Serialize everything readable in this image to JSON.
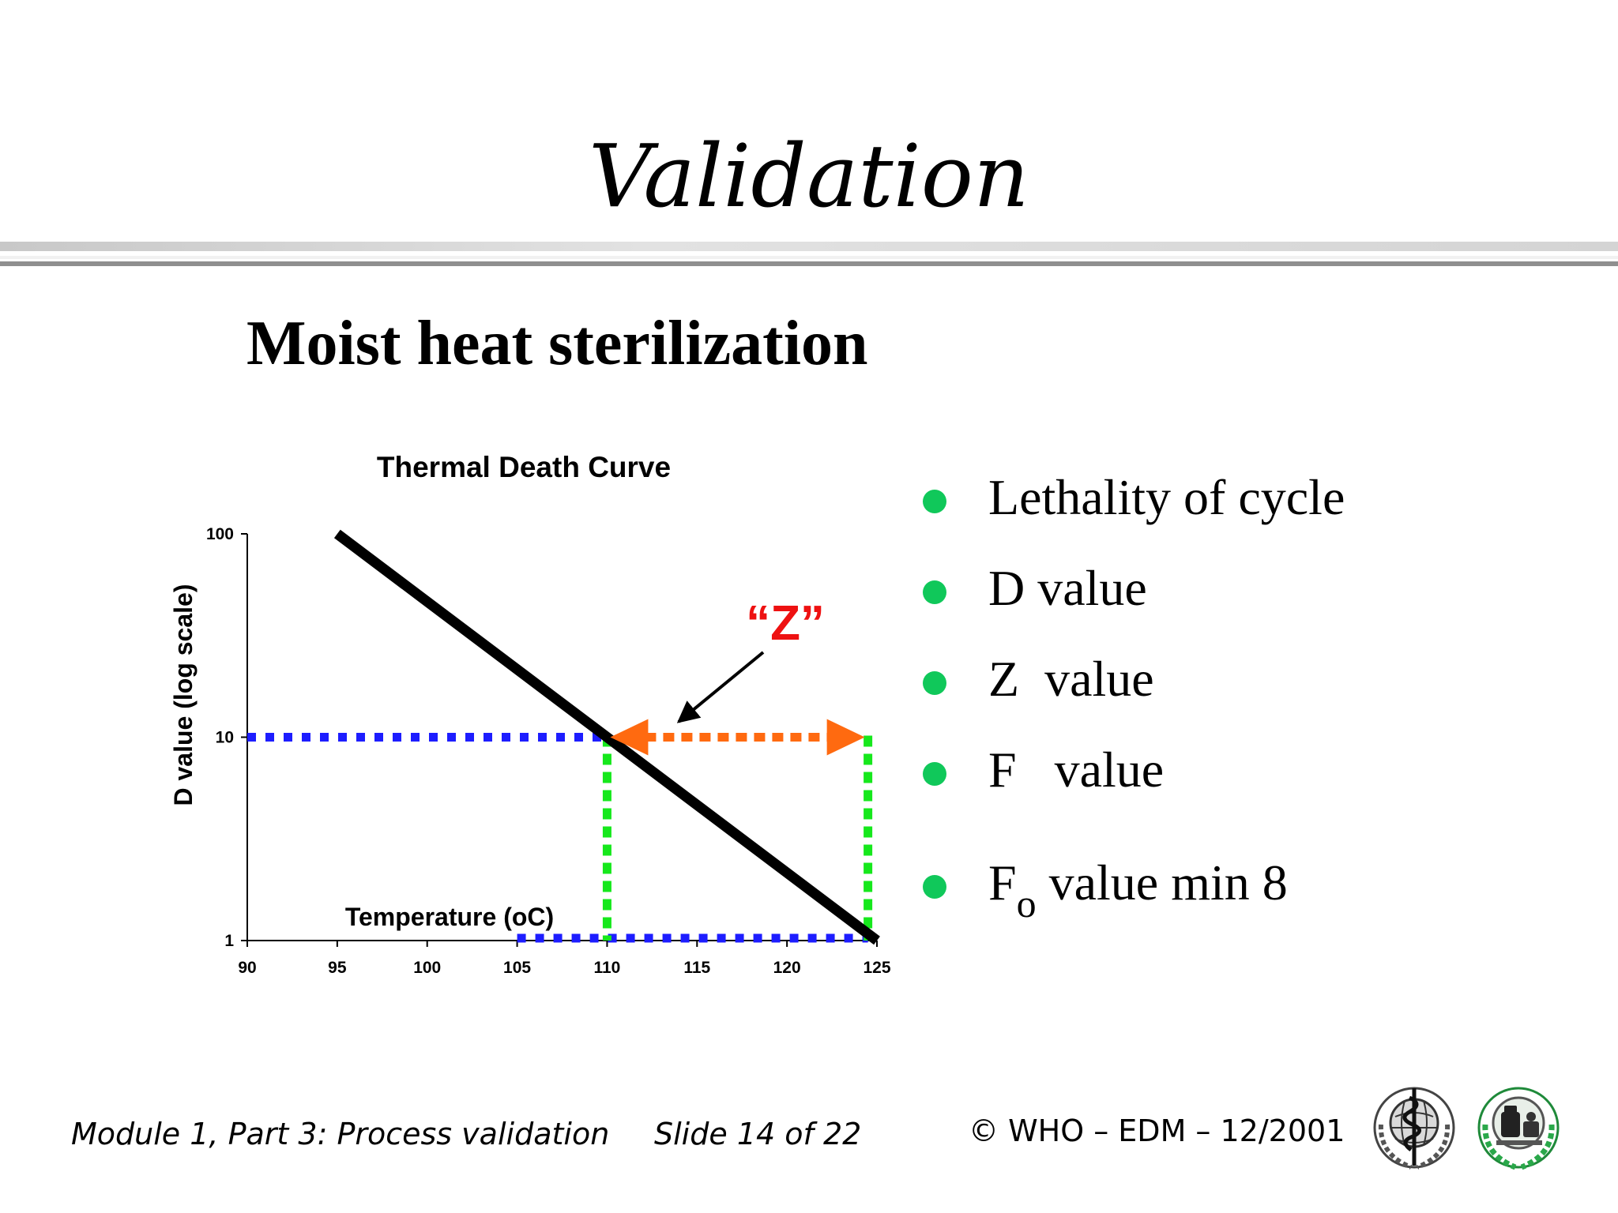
{
  "slide": {
    "title": "Validation",
    "subtitle": "Moist heat sterilization"
  },
  "chart_data": {
    "type": "line",
    "title": "Thermal Death Curve",
    "xlabel": "Temperature (oC)",
    "ylabel": "D value (log scale)",
    "x_ticks": [
      "90",
      "95",
      "100",
      "105",
      "110",
      "115",
      "120",
      "125"
    ],
    "y_ticks": [
      "1",
      "10",
      "100"
    ],
    "xlim": [
      90,
      125
    ],
    "ylim": [
      1,
      100
    ],
    "y_scale": "log",
    "grid": false,
    "series": [
      {
        "x": [
          95,
          125
        ],
        "y": [
          100,
          1
        ],
        "color": "#000000"
      }
    ],
    "reference_lines": {
      "d10_horizontal": {
        "x": [
          90,
          110
        ],
        "y": 10,
        "color": "#1d1dff"
      },
      "d1_horizontal": {
        "x": [
          105,
          124.5
        ],
        "y": 1,
        "color": "#1d1dff"
      },
      "vertical_110": {
        "x": 110,
        "y": [
          1,
          10
        ],
        "color": "#16e81c"
      },
      "vertical_124": {
        "x": 124.5,
        "y": [
          1,
          10
        ],
        "color": "#16e81c"
      },
      "z_span": {
        "x": [
          110,
          124.5
        ],
        "y": 10,
        "color": "#ff6a10"
      }
    },
    "annotation": {
      "text": "“Z”",
      "color": "#ee1111"
    }
  },
  "bullets": [
    {
      "main": "Lethality of cycle",
      "sub": "",
      "rest": ""
    },
    {
      "main": "D value",
      "sub": "",
      "rest": ""
    },
    {
      "main": "Z  value",
      "sub": "",
      "rest": ""
    },
    {
      "main": "F   value",
      "sub": "",
      "rest": ""
    },
    {
      "main": "F",
      "sub": "o",
      "rest": " value min 8"
    }
  ],
  "colors": {
    "bullet": "#10c85a"
  },
  "footer": {
    "module": "Module 1, Part 3: Process validation",
    "slide": "Slide 14 of 22",
    "copyright": "© WHO – EDM – 12/2001"
  },
  "logos": [
    "who-emblem-icon",
    "edm-emblem-icon"
  ]
}
